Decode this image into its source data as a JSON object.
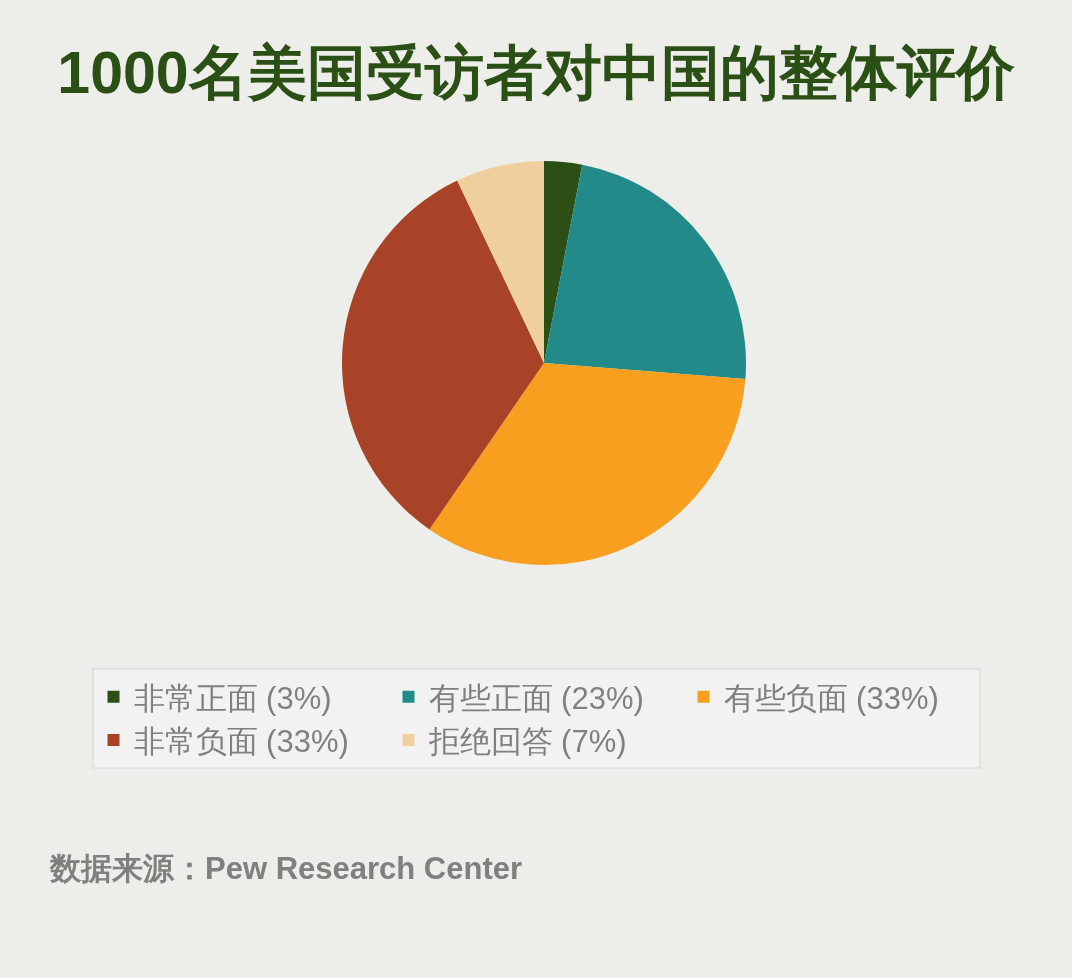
{
  "chart_data": {
    "type": "pie",
    "title": "1000名美国受访者对中国的整体评价",
    "categories": [
      "非常正面 (3%)",
      "有些正面 (23%)",
      "有些负面 (33%)",
      "非常负面 (33%)",
      "拒绝回答 (7%)"
    ],
    "values": [
      3,
      23,
      33,
      33,
      7
    ],
    "colors": [
      "#2b4f14",
      "#228a88",
      "#f89f1f",
      "#a84328",
      "#efcf9d"
    ],
    "legend": "bottom",
    "annotations": [
      "数据来源：Pew Research Center"
    ]
  }
}
